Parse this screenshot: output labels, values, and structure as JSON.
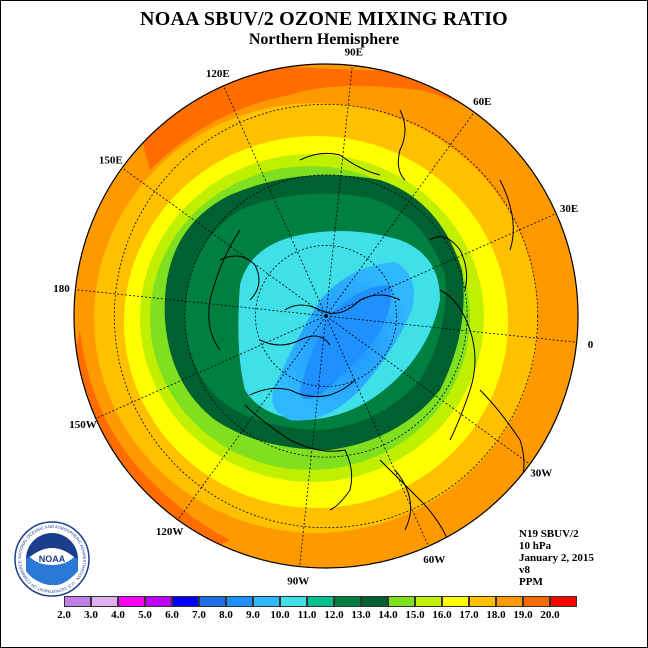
{
  "title": "NOAA SBUV/2 OZONE MIXING RATIO",
  "subtitle": "Northern Hemisphere",
  "longitude_labels": [
    "90E",
    "60E",
    "30E",
    "0",
    "30W",
    "60W",
    "90W",
    "120W",
    "150W",
    "180",
    "150E",
    "120E"
  ],
  "info": [
    "N19 SBUV/2",
    "10 hPa",
    "January 2, 2015",
    "v8",
    "PPM"
  ],
  "colorbar": {
    "labels": [
      "2.0",
      "3.0",
      "4.0",
      "5.0",
      "6.0",
      "7.0",
      "8.0",
      "9.0",
      "10.0",
      "11.0",
      "12.0",
      "13.0",
      "14.0",
      "15.0",
      "16.0",
      "17.0",
      "18.0",
      "19.0",
      "20.0"
    ],
    "colors": [
      "#c080e8",
      "#e0b0f0",
      "#ff00ff",
      "#c000ff",
      "#0000ff",
      "#1e6ee8",
      "#1e90ff",
      "#30b8ff",
      "#40e0e8",
      "#00c090",
      "#008040",
      "#006030",
      "#80e020",
      "#c0f000",
      "#ffff00",
      "#ffc000",
      "#ff9900",
      "#ff6a00",
      "#ff0000",
      "#8b5a3c"
    ]
  },
  "logo": {
    "text": "NOAA",
    "ring_text": "NATIONAL OCEANIC AND ATMOSPHERIC ADMINISTRATION · U.S. DEPARTMENT OF COMMERCE"
  }
}
